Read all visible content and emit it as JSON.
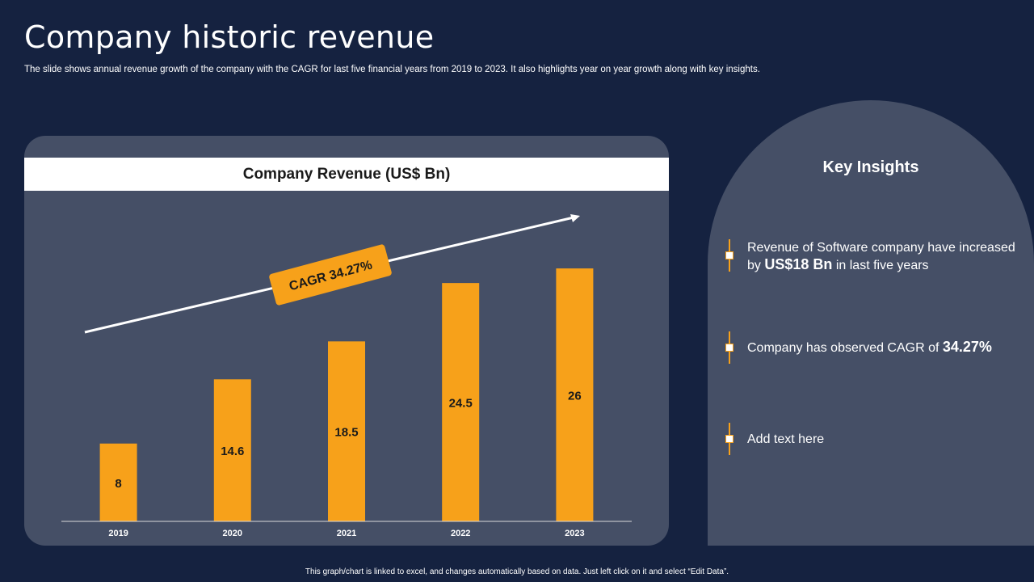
{
  "page": {
    "title": "Company historic revenue",
    "subtitle": "The slide shows annual revenue growth of the company with the CAGR for last five financial years from 2019 to 2023. It also highlights year on year growth along with key insights.",
    "footer": "This graph/chart is linked to excel, and changes automatically based on data. Just left click on it and select “Edit Data”."
  },
  "chart_data": {
    "type": "bar",
    "title": "Company Revenue (US$ Bn)",
    "categories": [
      "2019",
      "2020",
      "2021",
      "2022",
      "2023"
    ],
    "values": [
      8,
      14.6,
      18.5,
      24.5,
      26
    ],
    "ylim": [
      0,
      28
    ],
    "xlabel": "",
    "ylabel": "",
    "grid": false,
    "bar_color": "#f7a11a",
    "annotation": "CAGR 34.27%"
  },
  "insights": {
    "title": "Key Insights",
    "items": [
      {
        "pre": "Revenue of Software company have increased by ",
        "bold": "US$18 Bn",
        "post": " in last five years"
      },
      {
        "pre": "Company has observed CAGR of ",
        "bold": "34.27%",
        "post": ""
      },
      {
        "pre": "Add text here",
        "bold": "",
        "post": ""
      }
    ]
  },
  "colors": {
    "background": "#152240",
    "panel": "#454f66",
    "accent": "#f7a11a"
  }
}
